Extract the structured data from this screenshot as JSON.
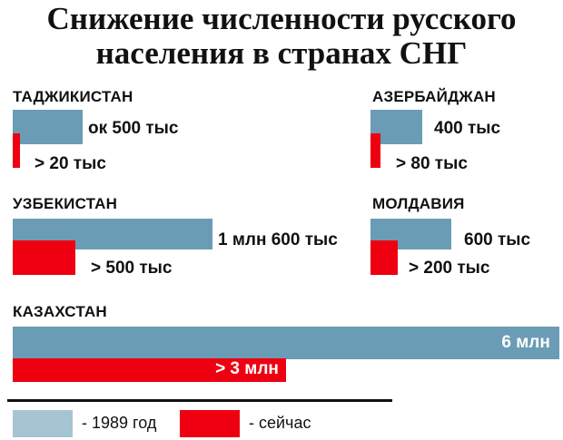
{
  "chart_data": {
    "type": "bar",
    "title": "Снижение численности русского населения в странах СНГ",
    "colors": {
      "1989": "#6b9cb5",
      "now": "#ee0011"
    },
    "legend": [
      {
        "label": "- 1989 год",
        "color": "#a7c4d3"
      },
      {
        "label": "- сейчас",
        "color": "#ee0011"
      }
    ],
    "countries": [
      {
        "name": "ТАДЖИКИСТАН",
        "v1989": 500,
        "vnow": 20,
        "label1989": "ок 500 тыс",
        "labelnow": "> 20 тыс"
      },
      {
        "name": "АЗЕРБАЙДЖАН",
        "v1989": 400,
        "vnow": 80,
        "label1989": "400 тыс",
        "labelnow": "> 80 тыс"
      },
      {
        "name": "УЗБЕКИСТАН",
        "v1989": 1600,
        "vnow": 500,
        "label1989": "1 млн 600 тыс",
        "labelnow": "> 500 тыс"
      },
      {
        "name": "МОЛДАВИЯ",
        "v1989": 600,
        "vnow": 200,
        "label1989": "600 тыс",
        "labelnow": "> 200 тыс"
      },
      {
        "name": "КАЗАХСТАН",
        "v1989": 6000,
        "vnow": 3000,
        "label1989": "6 млн",
        "labelnow": "> 3 млн"
      }
    ]
  }
}
